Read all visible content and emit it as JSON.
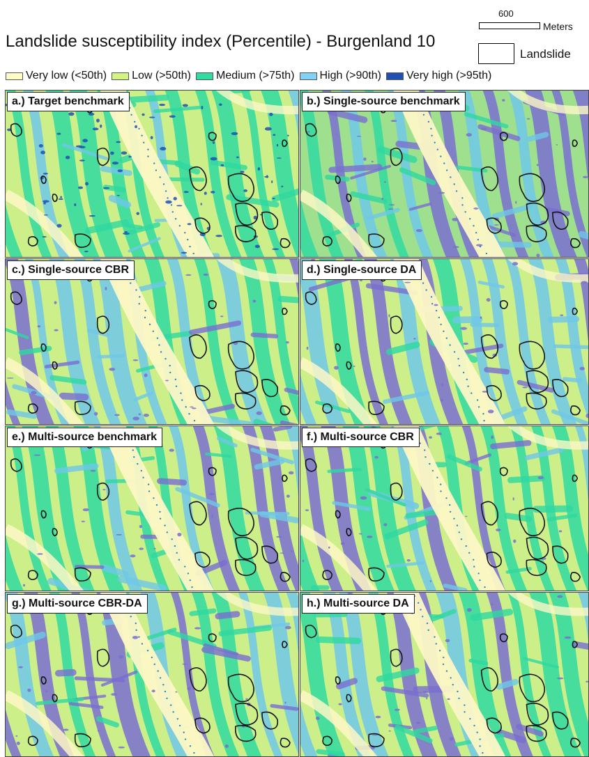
{
  "title": "Landslide susceptibility index (Percentile) - Burgenland 10",
  "scalebar": {
    "value": "600",
    "unit": "Meters"
  },
  "landslide_legend": {
    "label": "Landslide"
  },
  "legend": [
    {
      "label": "Very low (<50th)",
      "color": "#fffcc8"
    },
    {
      "label": "Low (>50th)",
      "color": "#d2f582"
    },
    {
      "label": "Medium (>75th)",
      "color": "#30dca0"
    },
    {
      "label": "High (>90th)",
      "color": "#82d2f5"
    },
    {
      "label": "Very high (>95th)",
      "color": "#2050b4"
    }
  ],
  "panels": [
    {
      "label": "a.) Target benchmark",
      "style": "target"
    },
    {
      "label": "b.) Single-source benchmark",
      "style": "single"
    },
    {
      "label": "c.) Single-source CBR",
      "style": "cbr"
    },
    {
      "label": "d.) Single-source DA",
      "style": "cbr"
    },
    {
      "label": "e.) Multi-source benchmark",
      "style": "multi"
    },
    {
      "label": "f.) Multi-source CBR",
      "style": "multi"
    },
    {
      "label": "g.) Multi-source CBR-DA",
      "style": "multi"
    },
    {
      "label": "h.) Multi-source DA",
      "style": "multi"
    }
  ]
}
